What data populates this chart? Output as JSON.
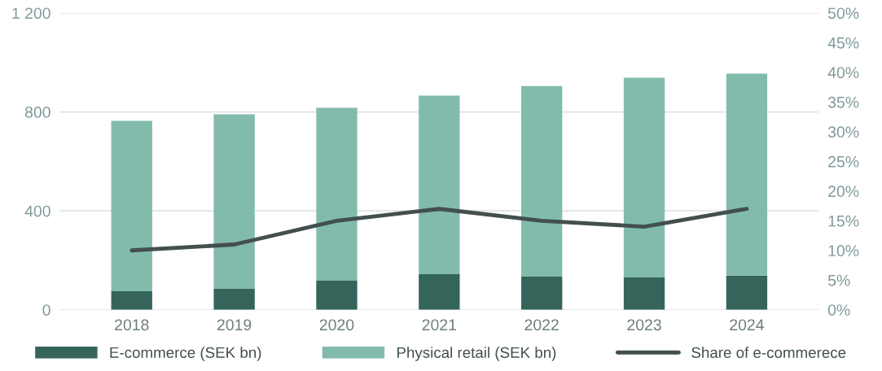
{
  "chart_data": {
    "type": "bar",
    "stacked": true,
    "categories": [
      "2018",
      "2019",
      "2020",
      "2021",
      "2022",
      "2023",
      "2024"
    ],
    "series": [
      {
        "name": "E-commerce (SEK bn)",
        "color": "#35655a",
        "values": [
          75,
          85,
          118,
          144,
          134,
          131,
          138
        ]
      },
      {
        "name": "Physical retail (SEK bn)",
        "color": "#82bbac",
        "values": [
          689,
          705,
          699,
          722,
          771,
          807,
          817
        ]
      },
      {
        "name": "Share of e-commerece",
        "type": "line",
        "axis": "y2",
        "color": "#434f4f",
        "values": [
          10,
          11,
          15,
          17,
          15,
          14,
          17
        ]
      }
    ],
    "ylim": [
      0,
      1200
    ],
    "yticks": [
      0,
      400,
      800,
      {
        "value": 1200,
        "label": "1 200"
      }
    ],
    "y2lim": [
      0,
      50
    ],
    "y2ticks": [
      {
        "value": 0,
        "label": "0%"
      },
      {
        "value": 5,
        "label": "5%"
      },
      {
        "value": 10,
        "label": "10%"
      },
      {
        "value": 15,
        "label": "15%"
      },
      {
        "value": 20,
        "label": "20%"
      },
      {
        "value": 25,
        "label": "25%"
      },
      {
        "value": 30,
        "label": "30%"
      },
      {
        "value": 35,
        "label": "35%"
      },
      {
        "value": 40,
        "label": "40%"
      },
      {
        "value": 45,
        "label": "45%"
      },
      {
        "value": 50,
        "label": "50%"
      }
    ],
    "grid": "y",
    "legend": "bottom",
    "line_style": "solid",
    "marker": "none"
  }
}
